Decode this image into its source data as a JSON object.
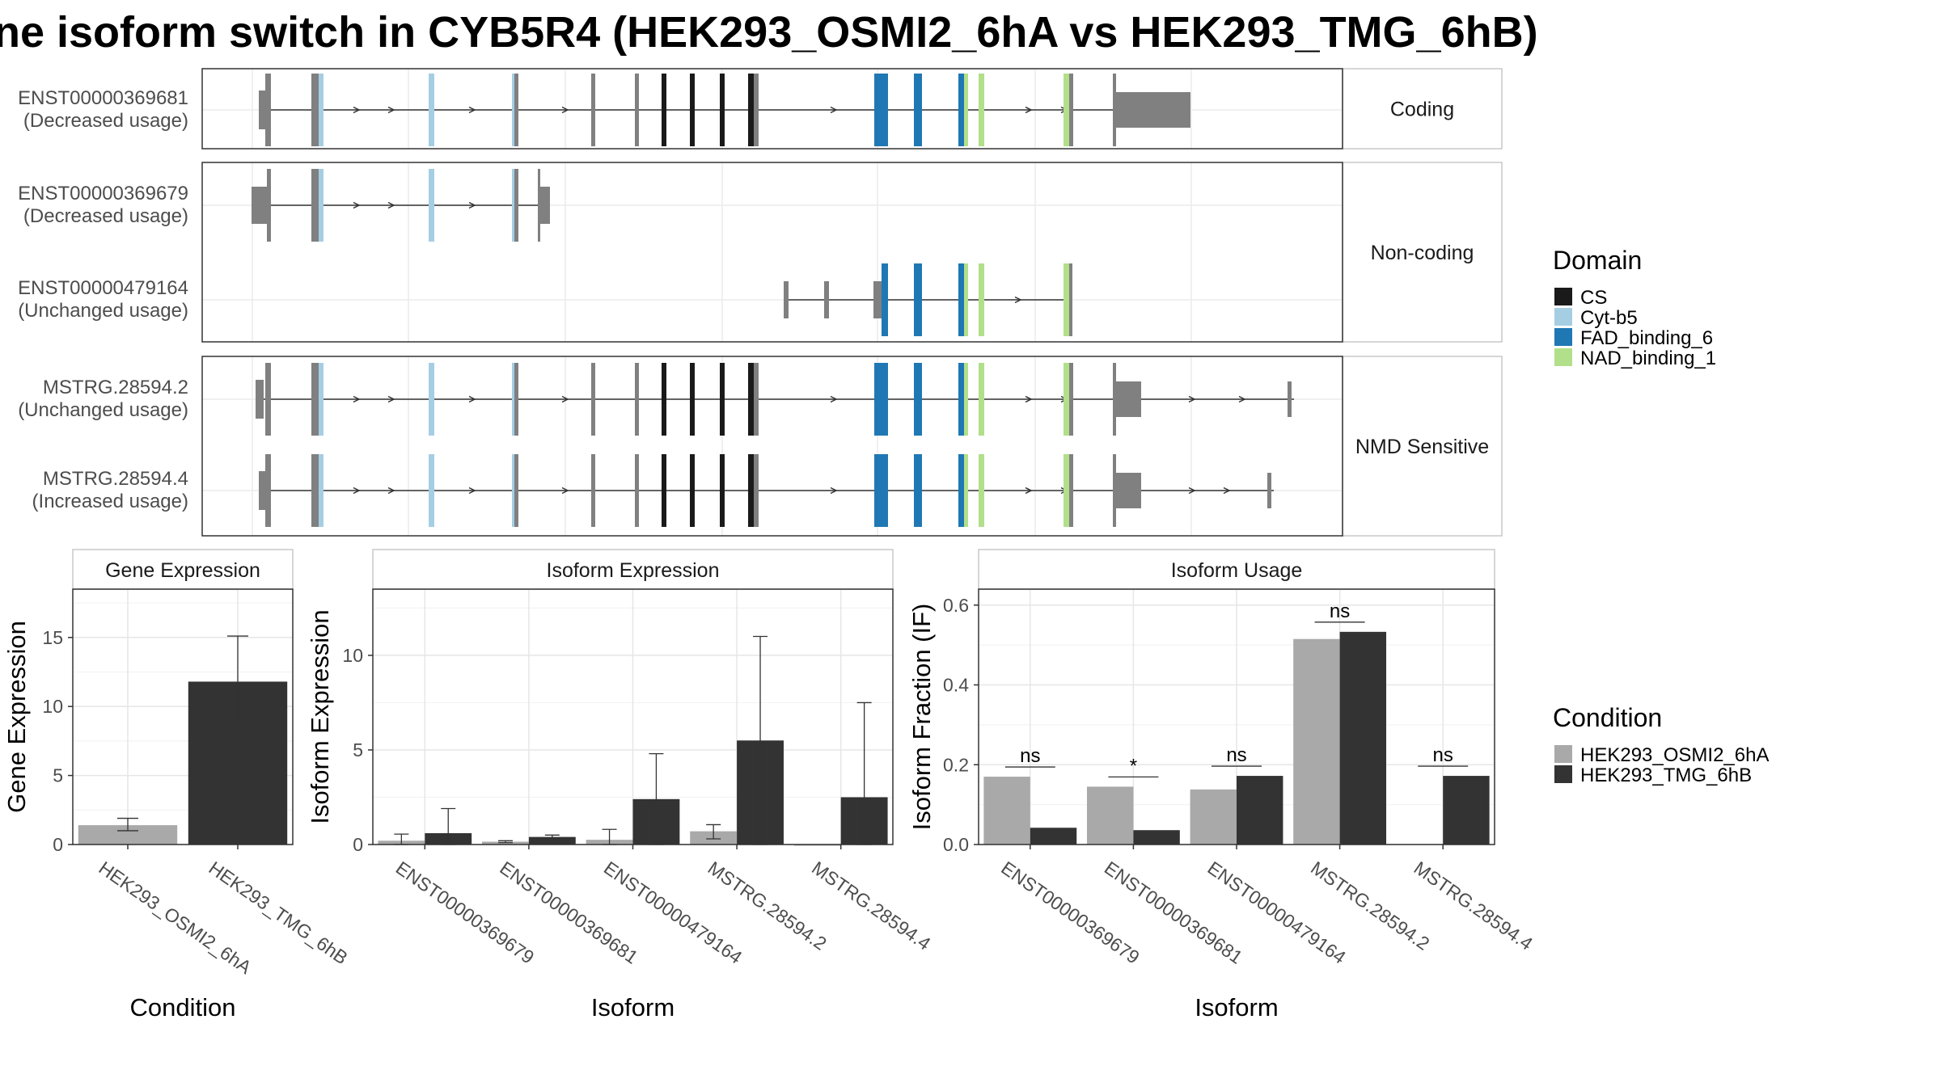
{
  "title": "ne isoform switch in CYB5R4 (HEK293_OSMI2_6hA vs HEK293_TMG_6hB)",
  "colors": {
    "CS": "#1a1a1a",
    "Cyt-b5": "#a6cee3",
    "FAD_binding_6": "#1f78b4",
    "NAD_binding_1": "#b2df8a",
    "exon": "#808080",
    "cond1": "#a9a9a9",
    "cond2": "#333333"
  },
  "transcripts": {
    "facets": [
      {
        "label": "Coding",
        "rows": [
          {
            "id": "ENST00000369681",
            "usage": "(Decreased usage)"
          }
        ]
      },
      {
        "label": "Non-coding",
        "rows": [
          {
            "id": "ENST00000369679",
            "usage": "(Decreased usage)"
          },
          {
            "id": "ENST00000479164",
            "usage": "(Unchanged usage)"
          }
        ]
      },
      {
        "label": "NMD Sensitive",
        "rows": [
          {
            "id": "MSTRG.28594.2",
            "usage": "(Unchanged usage)"
          },
          {
            "id": "MSTRG.28594.4",
            "usage": "(Increased usage)"
          }
        ]
      }
    ]
  },
  "legends": {
    "domain": {
      "title": "Domain",
      "items": [
        "CS",
        "Cyt-b5",
        "FAD_binding_6",
        "NAD_binding_1"
      ]
    },
    "condition": {
      "title": "Condition",
      "items": [
        "HEK293_OSMI2_6hA",
        "HEK293_TMG_6hB"
      ]
    }
  },
  "chart_data": [
    {
      "type": "bar",
      "title": "Gene Expression",
      "xlabel": "Condition",
      "ylabel": "Gene Expression",
      "ylim": [
        0,
        18.5
      ],
      "yticks": [
        0,
        5,
        10,
        15
      ],
      "categories": [
        "HEK293_OSMI2_6hA",
        "HEK293_TMG_6hB"
      ],
      "values": [
        1.4,
        11.8
      ],
      "error_low": [
        1.0,
        8.6
      ],
      "error_high": [
        1.9,
        15.1
      ]
    },
    {
      "type": "bar",
      "title": "Isoform Expression",
      "xlabel": "Isoform",
      "ylabel": "Isoform Expression",
      "ylim": [
        0,
        13.5
      ],
      "yticks": [
        0,
        5,
        10
      ],
      "categories": [
        "ENST00000369679",
        "ENST00000369681",
        "ENST00000479164",
        "MSTRG.28594.2",
        "MSTRG.28594.4"
      ],
      "series": [
        {
          "name": "HEK293_OSMI2_6hA",
          "values": [
            0.2,
            0.15,
            0.25,
            0.7,
            0.0
          ],
          "error_low": [
            0.0,
            0.1,
            0.0,
            0.3,
            0.0
          ],
          "error_high": [
            0.55,
            0.2,
            0.8,
            1.05,
            0.0
          ]
        },
        {
          "name": "HEK293_TMG_6hB",
          "values": [
            0.6,
            0.4,
            2.4,
            5.5,
            2.5
          ],
          "error_low": [
            0.0,
            0.3,
            0.0,
            0.0,
            0.0
          ],
          "error_high": [
            1.9,
            0.5,
            4.8,
            11.0,
            7.5
          ]
        }
      ]
    },
    {
      "type": "bar",
      "title": "Isoform Usage",
      "xlabel": "Isoform",
      "ylabel": "Isoform Fraction (IF)",
      "ylim": [
        0,
        0.64
      ],
      "yticks": [
        0.0,
        0.2,
        0.4,
        0.6
      ],
      "categories": [
        "ENST00000369679",
        "ENST00000369681",
        "ENST00000479164",
        "MSTRG.28594.2",
        "MSTRG.28594.4"
      ],
      "series": [
        {
          "name": "HEK293_OSMI2_6hA",
          "values": [
            0.17,
            0.145,
            0.138,
            0.515,
            0.0
          ]
        },
        {
          "name": "HEK293_TMG_6hB",
          "values": [
            0.042,
            0.036,
            0.172,
            0.533,
            0.172
          ]
        }
      ],
      "significance": [
        "ns",
        "*",
        "ns",
        "ns",
        "ns"
      ]
    }
  ]
}
